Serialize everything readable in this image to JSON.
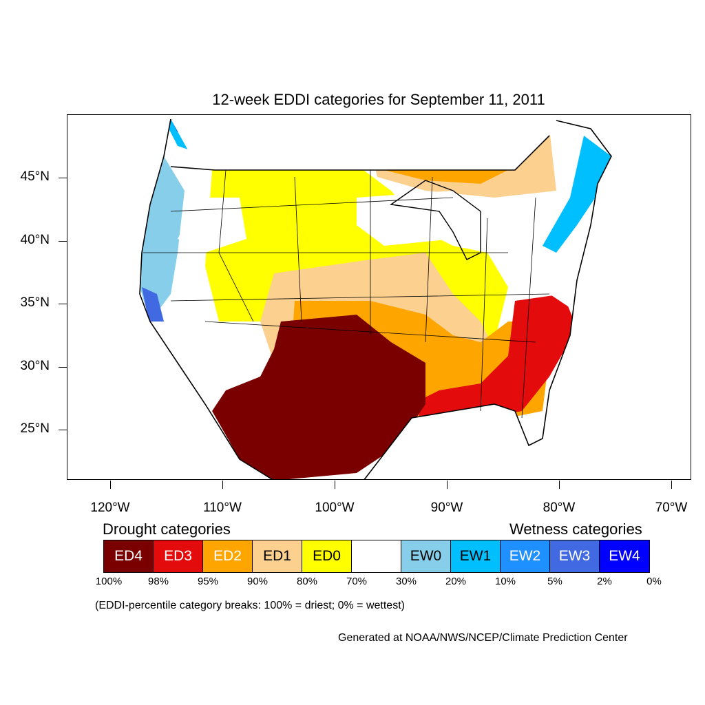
{
  "title": "12-week EDDI categories for September 11, 2011",
  "map": {
    "lon_ticks": [
      "120°W",
      "110°W",
      "100°W",
      "90°W",
      "80°W",
      "70°W"
    ],
    "lat_ticks": [
      "45°N",
      "40°N",
      "35°N",
      "30°N",
      "25°N"
    ]
  },
  "legend": {
    "drought_heading": "Drought categories",
    "wetness_heading": "Wetness categories",
    "categories": [
      {
        "label": "ED4",
        "color": "#7a0000",
        "text_color": "#ffffff"
      },
      {
        "label": "ED3",
        "color": "#e30b0b",
        "text_color": "#ffffff"
      },
      {
        "label": "ED2",
        "color": "#ffa500",
        "text_color": "#ffffff"
      },
      {
        "label": "ED1",
        "color": "#fcd08f",
        "text_color": "#000000"
      },
      {
        "label": "ED0",
        "color": "#ffff00",
        "text_color": "#000000"
      },
      {
        "label": "",
        "color": "#ffffff",
        "text_color": "#000000"
      },
      {
        "label": "EW0",
        "color": "#87ceeb",
        "text_color": "#000000"
      },
      {
        "label": "EW1",
        "color": "#00bfff",
        "text_color": "#000000"
      },
      {
        "label": "EW2",
        "color": "#1e90ff",
        "text_color": "#ffffff"
      },
      {
        "label": "EW3",
        "color": "#4169e1",
        "text_color": "#ffffff"
      },
      {
        "label": "EW4",
        "color": "#0000ff",
        "text_color": "#ffffff"
      }
    ],
    "breaks": [
      "100%",
      "98%",
      "95%",
      "90%",
      "80%",
      "70%",
      "30%",
      "20%",
      "10%",
      "5%",
      "2%",
      "0%"
    ],
    "note": "(EDDI-percentile category breaks: 100% = driest; 0% = wettest)"
  },
  "credit": "Generated at NOAA/NWS/NCEP/Climate Prediction Center"
}
